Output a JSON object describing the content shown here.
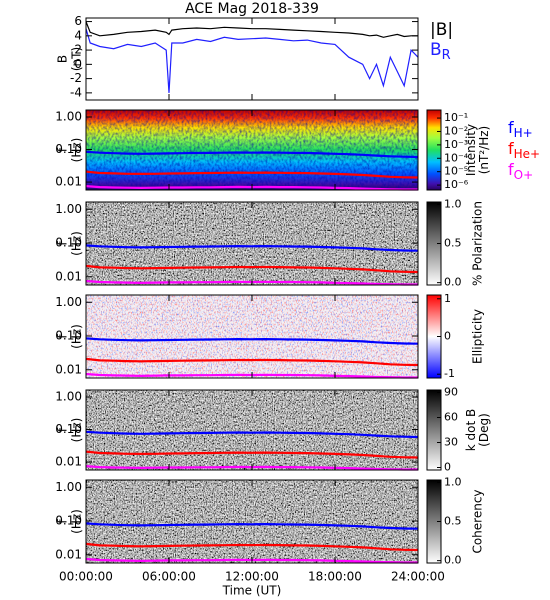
{
  "chart_data": {
    "type": "multi-panel",
    "title": "ACE Mag 2018-339",
    "x_label": "Time (UT)",
    "xlim": [
      0,
      24
    ],
    "xticks": [
      {
        "value": 0,
        "label": "00:00:00"
      },
      {
        "value": 6,
        "label": "06:00:00"
      },
      {
        "value": 12,
        "label": "12:00:00"
      },
      {
        "value": 18,
        "label": "18:00:00"
      },
      {
        "value": 24,
        "label": "24:00:00"
      }
    ],
    "gyrofrequencies": {
      "x": [
        0,
        1,
        2,
        3,
        4,
        5,
        6,
        7,
        8,
        9,
        10,
        11,
        12,
        13,
        14,
        15,
        16,
        17,
        18,
        19,
        20,
        21,
        22,
        23,
        24
      ],
      "series": [
        {
          "name": "f",
          "subscript": "H+",
          "color": "#0000ff",
          "values": [
            0.085,
            0.08,
            0.077,
            0.075,
            0.074,
            0.075,
            0.076,
            0.077,
            0.078,
            0.079,
            0.08,
            0.081,
            0.08,
            0.081,
            0.08,
            0.079,
            0.078,
            0.076,
            0.074,
            0.072,
            0.069,
            0.065,
            0.062,
            0.06,
            0.059
          ]
        },
        {
          "name": "f",
          "subscript": "He+",
          "color": "#ff0000",
          "values": [
            0.021,
            0.019,
            0.0185,
            0.018,
            0.0178,
            0.018,
            0.0183,
            0.0185,
            0.0188,
            0.019,
            0.0192,
            0.0195,
            0.0193,
            0.0195,
            0.0193,
            0.019,
            0.0188,
            0.0183,
            0.0178,
            0.0172,
            0.0165,
            0.0155,
            0.0145,
            0.014,
            0.0138
          ]
        },
        {
          "name": "f",
          "subscript": "O+",
          "color": "#ff00ff",
          "values": [
            0.0075,
            0.007,
            0.0068,
            0.0067,
            0.0066,
            0.0067,
            0.0068,
            0.0068,
            0.0069,
            0.0069,
            0.007,
            0.0071,
            0.007,
            0.0071,
            0.007,
            0.007,
            0.0069,
            0.0068,
            0.0066,
            0.0065,
            0.0063,
            0.0061,
            0.006,
            0.0059,
            0.0059
          ]
        }
      ]
    },
    "panels": [
      {
        "type": "line",
        "ylabel": [
          "B",
          "(nT)"
        ],
        "ylim": [
          -5,
          6.5
        ],
        "yticks": [
          -4,
          -2,
          0,
          2,
          4,
          6
        ],
        "x": [
          0,
          0.3,
          1,
          2,
          3,
          4,
          5,
          5.8,
          6,
          6.2,
          7,
          8,
          9,
          10,
          11,
          12,
          13,
          14,
          15,
          16,
          17,
          18,
          19,
          20,
          20.5,
          21,
          21.5,
          22,
          22.5,
          23,
          23.5,
          24
        ],
        "series": [
          {
            "name": "|B|",
            "color": "#000000",
            "values": [
              6,
              4.5,
              4,
              4.2,
              4.5,
              4.6,
              4.8,
              4.5,
              4.2,
              4.8,
              5,
              5.1,
              5,
              5.2,
              5.1,
              5,
              5,
              4.9,
              4.8,
              4.7,
              4.6,
              4.5,
              4.4,
              4.2,
              4,
              4.1,
              3.8,
              4,
              4.2,
              3.9,
              4,
              4
            ]
          },
          {
            "name": "B",
            "subscript": "R",
            "color": "#2020ff",
            "values": [
              5,
              3,
              2.5,
              2.2,
              2.8,
              2.5,
              3,
              2,
              -4,
              3,
              3,
              3.5,
              3.2,
              3.8,
              3.5,
              3.6,
              3.7,
              3.5,
              3.3,
              3.4,
              3,
              2.8,
              1,
              0,
              -2,
              0,
              -3,
              1,
              -1,
              -3,
              2,
              1
            ]
          }
        ]
      },
      {
        "type": "spectrogram",
        "ylabel": [
          "f",
          "(Hz)"
        ],
        "log_scale": true,
        "ylim": [
          0.0057,
          1.64
        ],
        "yticks": [
          {
            "value": 1,
            "label": "1.00"
          },
          {
            "value": 0.1,
            "label": "0.10"
          },
          {
            "value": 0.01,
            "label": "0.01"
          }
        ],
        "colorbar": {
          "label": [
            "Intensity",
            "(nT²/Hz)"
          ],
          "colormap": "rainbow",
          "log_scale": true,
          "lim": [
            4.3e-07,
            0.4
          ],
          "ticks": [
            {
              "value": 0.1,
              "label": "10⁻¹"
            },
            {
              "value": 0.01,
              "label": "10⁻²"
            },
            {
              "value": 0.001,
              "label": "10⁻³"
            },
            {
              "value": 0.0001,
              "label": "10⁻⁴"
            },
            {
              "value": 1e-05,
              "label": "10⁻⁵"
            },
            {
              "value": 1e-06,
              "label": "10⁻⁶"
            }
          ]
        },
        "legend": true
      },
      {
        "type": "spectrogram",
        "ylabel": [
          "f",
          "(Hz)"
        ],
        "log_scale": true,
        "ylim": [
          0.0057,
          1.64
        ],
        "yticks": [
          {
            "value": 1,
            "label": "1.00"
          },
          {
            "value": 0.1,
            "label": "0.10"
          },
          {
            "value": 0.01,
            "label": "0.01"
          }
        ],
        "colorbar": {
          "label": [
            "% Polarization"
          ],
          "colormap": "gray",
          "log_scale": false,
          "lim": [
            -0.03,
            1.03
          ],
          "ticks": [
            {
              "value": 1,
              "label": "1.0"
            },
            {
              "value": 0.5,
              "label": "0.5"
            },
            {
              "value": 0,
              "label": "0.0"
            }
          ]
        }
      },
      {
        "type": "spectrogram",
        "ylabel": [
          "f",
          "(Hz)"
        ],
        "log_scale": true,
        "ylim": [
          0.0057,
          1.64
        ],
        "yticks": [
          {
            "value": 1,
            "label": "1.00"
          },
          {
            "value": 0.1,
            "label": "0.10"
          },
          {
            "value": 0.01,
            "label": "0.01"
          }
        ],
        "colorbar": {
          "label": [
            "Ellipticity"
          ],
          "colormap": "bwr",
          "log_scale": false,
          "lim": [
            -1.1,
            1.1
          ],
          "ticks": [
            1,
            0,
            -1
          ]
        }
      },
      {
        "type": "spectrogram",
        "ylabel": [
          "f",
          "(Hz)"
        ],
        "log_scale": true,
        "ylim": [
          0.0057,
          1.64
        ],
        "yticks": [
          {
            "value": 1,
            "label": "1.00"
          },
          {
            "value": 0.1,
            "label": "0.10"
          },
          {
            "value": 0.01,
            "label": "0.01"
          }
        ],
        "colorbar": {
          "label": [
            "k dot B",
            "(Deg)"
          ],
          "colormap": "gray",
          "log_scale": false,
          "lim": [
            -3,
            93
          ],
          "ticks": [
            90,
            60,
            30,
            0
          ]
        }
      },
      {
        "type": "spectrogram",
        "ylabel": [
          "f",
          "(Hz)"
        ],
        "log_scale": true,
        "ylim": [
          0.0057,
          1.64
        ],
        "yticks": [
          {
            "value": 1,
            "label": "1.00"
          },
          {
            "value": 0.1,
            "label": "0.10"
          },
          {
            "value": 0.01,
            "label": "0.01"
          }
        ],
        "colorbar": {
          "label": [
            "Coherency"
          ],
          "colormap": "gray",
          "log_scale": false,
          "lim": [
            -0.03,
            1.03
          ],
          "ticks": [
            {
              "value": 1,
              "label": "1.0"
            },
            {
              "value": 0.5,
              "label": "0.5"
            },
            {
              "value": 0,
              "label": "0.0"
            }
          ]
        }
      }
    ]
  }
}
